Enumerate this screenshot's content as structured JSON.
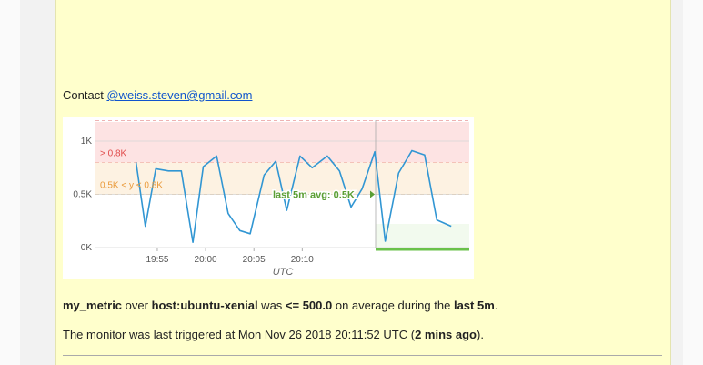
{
  "contact": {
    "prefix": "Contact ",
    "email": "@weiss.steven@gmail.com"
  },
  "chart_data": {
    "type": "line",
    "xlabel": "UTC",
    "x_ticks": [
      "19:55",
      "20:00",
      "20:05",
      "20:10"
    ],
    "y_ticks": [
      "1K",
      "0.5K",
      "0K"
    ],
    "ylim": [
      0,
      1.0
    ],
    "series": [
      {
        "values": [
          [
            19.88,
            0.8
          ],
          [
            19.896,
            0.2
          ],
          [
            19.914,
            0.74
          ],
          [
            19.936,
            0.72
          ],
          [
            19.958,
            0.72
          ],
          [
            19.978,
            0.05
          ],
          [
            19.996,
            0.76
          ],
          [
            20.019,
            0.86
          ],
          [
            20.039,
            0.32
          ],
          [
            20.059,
            0.16
          ],
          [
            20.077,
            0.13
          ],
          [
            20.101,
            0.68
          ],
          [
            20.121,
            0.81
          ],
          [
            20.14,
            0.35
          ],
          [
            20.163,
            0.86
          ],
          [
            20.184,
            0.75
          ],
          [
            20.21,
            0.86
          ],
          [
            20.231,
            0.72
          ],
          [
            20.251,
            0.38
          ],
          [
            20.27,
            0.55
          ],
          [
            20.292,
            0.9
          ],
          [
            20.31,
            0.06
          ],
          [
            20.333,
            0.7
          ],
          [
            20.356,
            0.91
          ],
          [
            20.378,
            0.87
          ],
          [
            20.399,
            0.26
          ],
          [
            20.424,
            0.2
          ]
        ]
      }
    ],
    "bands": [
      {
        "label": "> 0.8K",
        "from": 0.8,
        "to": 1.18,
        "color": "#fde3e3",
        "label_color": "#e04a4a"
      },
      {
        "label": "0.5K < y < 0.8K",
        "from": 0.5,
        "to": 0.8,
        "color": "#fdf2e2",
        "label_color": "#ea9a3a"
      }
    ],
    "average": {
      "label": "last 5m avg: 0.5K",
      "value": 0.5,
      "color": "#5b9e34"
    },
    "colors": {
      "line": "#3196d3",
      "grid": "#d5d5d5",
      "ok_bar": "#6ac14a"
    }
  },
  "summary": {
    "metric": "my_metric",
    "over": " over ",
    "host": "host:ubuntu-xenial",
    "was": " was ",
    "condition": "<= 500.0",
    "on_avg": " on average during the ",
    "window": "last 5m",
    "end": "."
  },
  "triggered": {
    "text": "The monitor was last triggered at Mon Nov 26 2018 20:11:52 UTC (",
    "ago": "2 mins ago",
    "end": ")."
  }
}
